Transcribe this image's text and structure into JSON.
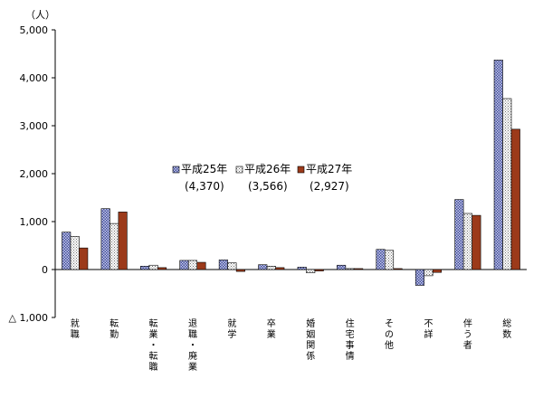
{
  "chart_data": {
    "type": "bar",
    "y_unit": "（人）",
    "ylim": [
      -1000,
      5000
    ],
    "yticks": [
      5000,
      4000,
      3000,
      2000,
      1000,
      0,
      -1000
    ],
    "ytick_labels": [
      "5,000",
      "4,000",
      "3,000",
      "2,000",
      "1,000",
      "0",
      "△ 1,000"
    ],
    "grid": false,
    "legend_position": "center",
    "categories": [
      "就職",
      "転勤",
      "転業・転職",
      "退職・廃業",
      "就学",
      "卒業",
      "婚姻関係",
      "住宅事情",
      "その他",
      "不詳",
      "伴う者",
      "総数"
    ],
    "series": [
      {
        "name": "平成25年",
        "total_label": "(4,370)",
        "color": "#7b86c4",
        "pattern": "dot",
        "values": [
          780,
          1270,
          70,
          190,
          200,
          100,
          50,
          90,
          420,
          -330,
          1460,
          4370
        ]
      },
      {
        "name": "平成26年",
        "total_label": "(3,566)",
        "color": "#ffffff",
        "pattern": "light",
        "values": [
          690,
          960,
          90,
          190,
          140,
          70,
          -70,
          20,
          400,
          -130,
          1170,
          3566
        ]
      },
      {
        "name": "平成27年",
        "total_label": "(2,927)",
        "color": "#9c3a1a",
        "pattern": "solid",
        "values": [
          450,
          1200,
          40,
          150,
          -40,
          40,
          -30,
          20,
          20,
          -60,
          1130,
          2927
        ]
      }
    ]
  }
}
